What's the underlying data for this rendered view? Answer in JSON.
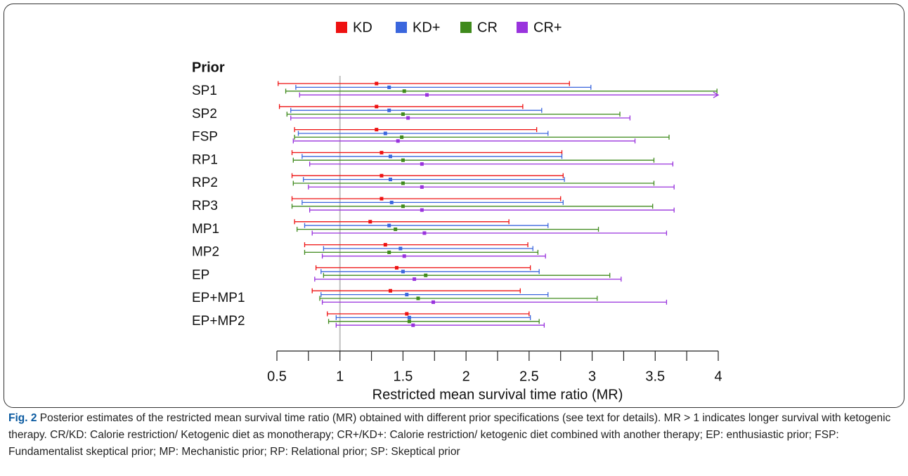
{
  "chart_data": {
    "type": "forest",
    "category_header": "Prior",
    "xlabel": "Restricted mean survival time ratio (MR)",
    "categories": [
      "SP1",
      "SP2",
      "FSP",
      "RP1",
      "RP2",
      "RP3",
      "MP1",
      "MP2",
      "EP",
      "EP+MP1",
      "EP+MP2"
    ],
    "series": [
      {
        "name": "KD",
        "color": "#ee1111",
        "values": [
          1.29,
          1.29,
          1.29,
          1.33,
          1.33,
          1.33,
          1.24,
          1.36,
          1.45,
          1.4,
          1.53
        ],
        "lower": [
          0.51,
          0.52,
          0.64,
          0.62,
          0.62,
          0.62,
          0.64,
          0.72,
          0.81,
          0.78,
          0.9
        ],
        "upper": [
          2.82,
          2.45,
          2.56,
          2.76,
          2.77,
          2.75,
          2.34,
          2.49,
          2.51,
          2.43,
          2.5
        ]
      },
      {
        "name": "KD+",
        "color": "#3a66dd",
        "values": [
          1.39,
          1.39,
          1.36,
          1.4,
          1.4,
          1.41,
          1.39,
          1.48,
          1.5,
          1.53,
          1.55
        ],
        "lower": [
          0.65,
          0.61,
          0.67,
          0.7,
          0.71,
          0.7,
          0.72,
          0.87,
          0.85,
          0.85,
          0.97
        ],
        "upper": [
          2.99,
          2.6,
          2.65,
          2.76,
          2.78,
          2.77,
          2.65,
          2.53,
          2.58,
          2.65,
          2.51
        ]
      },
      {
        "name": "CR",
        "color": "#3f8a1c",
        "values": [
          1.51,
          1.5,
          1.49,
          1.5,
          1.5,
          1.5,
          1.44,
          1.39,
          1.68,
          1.62,
          1.55
        ],
        "lower": [
          0.57,
          0.58,
          0.64,
          0.63,
          0.63,
          0.62,
          0.66,
          0.72,
          0.87,
          0.84,
          0.91
        ],
        "upper": [
          3.99,
          3.22,
          3.61,
          3.49,
          3.49,
          3.48,
          3.05,
          2.57,
          3.14,
          3.04,
          2.58
        ]
      },
      {
        "name": "CR+",
        "color": "#9933dd",
        "values": [
          1.69,
          1.54,
          1.46,
          1.65,
          1.65,
          1.65,
          1.67,
          1.51,
          1.59,
          1.74,
          1.58
        ],
        "lower": [
          0.68,
          0.61,
          0.63,
          0.76,
          0.75,
          0.76,
          0.78,
          0.86,
          0.8,
          0.86,
          0.97
        ],
        "upper": [
          4.1,
          3.3,
          3.34,
          3.64,
          3.65,
          3.65,
          3.59,
          2.63,
          3.23,
          3.59,
          2.62
        ]
      }
    ],
    "xlim": [
      0.5,
      4
    ],
    "xticks": [
      0.5,
      1,
      1.5,
      2,
      2.5,
      3,
      3.5,
      4
    ],
    "xminor_ticks": [
      0.75,
      1.25,
      1.75,
      2.25,
      2.75,
      3.25,
      3.75
    ],
    "reference_line": 1,
    "legend_position": "top",
    "caption": {
      "label": "Fig. 2",
      "text": "Posterior estimates of the restricted mean survival time ratio (MR) obtained with different prior specifications (see text for details). MR > 1 indicates longer survival with ketogenic therapy. CR/KD: Calorie restriction/ Ketogenic diet as monotherapy; CR+/KD+: Calorie restriction/ ketogenic diet combined with another therapy; EP: enthusiastic prior; FSP: Fundamentalist skeptical prior; MP: Mechanistic prior; RP: Relational prior; SP: Skeptical prior"
    }
  }
}
